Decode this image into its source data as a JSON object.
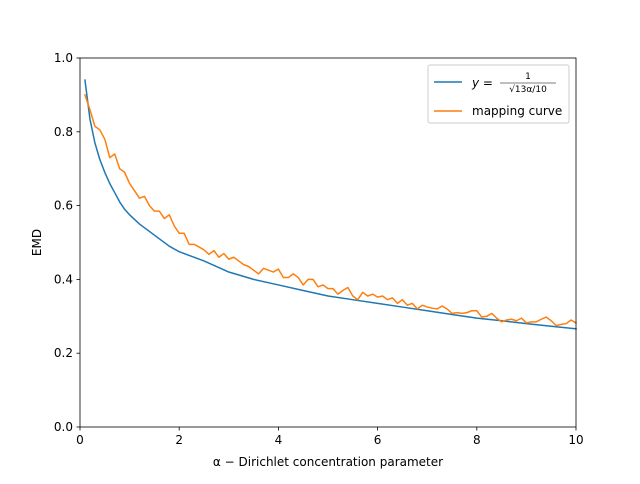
{
  "chart_data": {
    "type": "line",
    "xlabel": "α − Dirichlet concentration parameter",
    "ylabel": "EMD",
    "xlim": [
      0,
      10
    ],
    "ylim": [
      0,
      1.0
    ],
    "xticks": [
      0,
      2,
      4,
      6,
      8,
      10
    ],
    "xtick_labels": [
      "0",
      "2",
      "4",
      "6",
      "8",
      "10"
    ],
    "yticks": [
      0.0,
      0.2,
      0.4,
      0.6,
      0.8,
      1.0
    ],
    "ytick_labels": [
      "0.0",
      "0.2",
      "0.4",
      "0.6",
      "0.8",
      "1.0"
    ],
    "grid": false,
    "legend_position": "top-right",
    "series": [
      {
        "name": "y = 1/√(13α/10)",
        "legend_prefix": "y = ",
        "legend_numerator": "1",
        "legend_denominator": "√13α/10",
        "color": "#1f77b4",
        "x": [
          0.1,
          0.2,
          0.3,
          0.4,
          0.5,
          0.6,
          0.7,
          0.8,
          0.9,
          1.0,
          1.2,
          1.4,
          1.6,
          1.8,
          2.0,
          2.5,
          3.0,
          3.5,
          4.0,
          4.5,
          5.0,
          5.5,
          6.0,
          6.5,
          7.0,
          7.5,
          8.0,
          8.5,
          9.0,
          9.5,
          10.0
        ],
        "y": [
          0.94,
          0.835,
          0.77,
          0.725,
          0.69,
          0.66,
          0.635,
          0.61,
          0.59,
          0.575,
          0.55,
          0.53,
          0.51,
          0.49,
          0.475,
          0.45,
          0.42,
          0.4,
          0.385,
          0.37,
          0.355,
          0.345,
          0.335,
          0.325,
          0.315,
          0.305,
          0.295,
          0.288,
          0.28,
          0.273,
          0.266
        ]
      },
      {
        "name": "mapping curve",
        "color": "#ff7f0e",
        "x": [
          0.1,
          0.2,
          0.3,
          0.4,
          0.5,
          0.6,
          0.7,
          0.8,
          0.9,
          1.0,
          1.1,
          1.2,
          1.3,
          1.4,
          1.5,
          1.6,
          1.7,
          1.8,
          1.9,
          2.0,
          2.1,
          2.2,
          2.3,
          2.4,
          2.5,
          2.6,
          2.7,
          2.8,
          2.9,
          3.0,
          3.1,
          3.2,
          3.3,
          3.4,
          3.5,
          3.6,
          3.7,
          3.8,
          3.9,
          4.0,
          4.1,
          4.2,
          4.3,
          4.4,
          4.5,
          4.6,
          4.7,
          4.8,
          4.9,
          5.0,
          5.1,
          5.2,
          5.3,
          5.4,
          5.5,
          5.6,
          5.7,
          5.8,
          5.9,
          6.0,
          6.1,
          6.2,
          6.3,
          6.4,
          6.5,
          6.6,
          6.7,
          6.8,
          6.9,
          7.0,
          7.1,
          7.2,
          7.3,
          7.4,
          7.5,
          7.6,
          7.7,
          7.8,
          7.9,
          8.0,
          8.1,
          8.2,
          8.3,
          8.4,
          8.5,
          8.6,
          8.7,
          8.8,
          8.9,
          9.0,
          9.1,
          9.2,
          9.3,
          9.4,
          9.5,
          9.6,
          9.7,
          9.8,
          9.9,
          10.0
        ],
        "y": [
          0.9,
          0.86,
          0.815,
          0.805,
          0.78,
          0.73,
          0.74,
          0.7,
          0.69,
          0.66,
          0.64,
          0.62,
          0.625,
          0.6,
          0.585,
          0.585,
          0.565,
          0.575,
          0.545,
          0.525,
          0.525,
          0.495,
          0.495,
          0.488,
          0.48,
          0.468,
          0.478,
          0.46,
          0.47,
          0.455,
          0.46,
          0.45,
          0.44,
          0.435,
          0.425,
          0.415,
          0.43,
          0.425,
          0.42,
          0.428,
          0.405,
          0.405,
          0.415,
          0.405,
          0.385,
          0.4,
          0.4,
          0.38,
          0.385,
          0.375,
          0.375,
          0.36,
          0.37,
          0.378,
          0.355,
          0.345,
          0.365,
          0.355,
          0.36,
          0.352,
          0.355,
          0.345,
          0.35,
          0.335,
          0.345,
          0.33,
          0.335,
          0.32,
          0.33,
          0.325,
          0.322,
          0.32,
          0.328,
          0.32,
          0.308,
          0.31,
          0.308,
          0.31,
          0.315,
          0.315,
          0.298,
          0.3,
          0.308,
          0.295,
          0.285,
          0.29,
          0.292,
          0.288,
          0.295,
          0.282,
          0.285,
          0.285,
          0.292,
          0.298,
          0.288,
          0.275,
          0.278,
          0.28,
          0.29,
          0.282
        ]
      }
    ]
  }
}
